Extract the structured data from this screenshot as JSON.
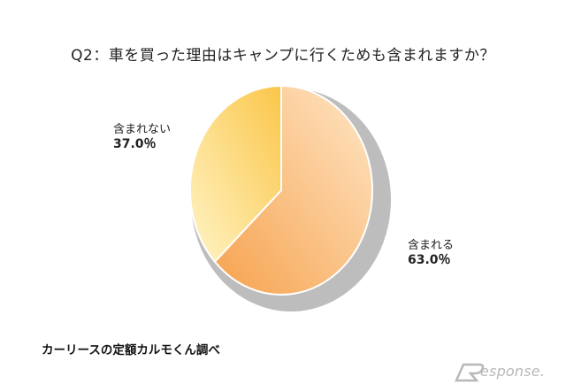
{
  "title": "Q2：車を買った理由はキャンプに行くためも含まれますか？",
  "source": "カーリースの定額カルモくん調べ",
  "watermark": "esponse.",
  "colors": {
    "slice_included": [
      "#f6a24e",
      "#ffe6c6"
    ],
    "slice_not_included": [
      "#fbc64a",
      "#fff4c6"
    ],
    "shadow": "#bdbdbd"
  },
  "chart_data": {
    "type": "pie",
    "categories": [
      "含まれる",
      "含まれない"
    ],
    "values": [
      63.0,
      37.0
    ],
    "labels": [
      {
        "name": "含まれる",
        "value": "63.0％"
      },
      {
        "name": "含まれない",
        "value": "37.0％"
      }
    ]
  }
}
